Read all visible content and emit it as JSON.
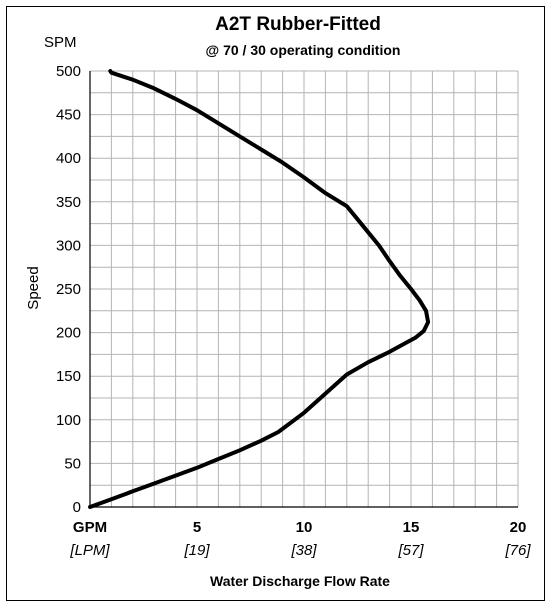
{
  "chart_data": {
    "type": "line",
    "title": "A2T Rubber-Fitted",
    "subtitle": "@ 70 / 30 operating condition",
    "xlabel": "Water Discharge Flow Rate",
    "ylabel": "Speed",
    "y_unit": "SPM",
    "x_unit": "GPM",
    "x_secondary_unit": "[LPM]",
    "xlim": [
      0,
      20
    ],
    "ylim": [
      0,
      500
    ],
    "x_ticks": [
      {
        "value": 5,
        "label": "5",
        "secondary": "[19]"
      },
      {
        "value": 10,
        "label": "10",
        "secondary": "[38]"
      },
      {
        "value": 15,
        "label": "15",
        "secondary": "[57]"
      },
      {
        "value": 20,
        "label": "20",
        "secondary": "[76]"
      }
    ],
    "y_ticks": [
      0,
      50,
      100,
      150,
      200,
      250,
      300,
      350,
      400,
      450,
      500
    ],
    "grid": true,
    "x_minor_step": 1,
    "y_minor_step": 25,
    "series": [
      {
        "color": "#000000",
        "x": [
          0,
          1,
          2,
          3,
          4,
          5,
          6,
          7,
          8,
          8.8,
          10,
          11,
          12,
          13,
          14,
          14.6,
          15.2,
          15.6,
          15.8,
          15.7,
          15.4,
          15,
          14.5,
          14,
          13.5,
          13,
          12.5,
          12,
          11,
          10,
          9,
          8,
          7,
          6,
          5,
          4,
          3,
          2,
          1,
          0.95
        ],
        "y": [
          0,
          9,
          18,
          27,
          36,
          45,
          55,
          65,
          76,
          86,
          108,
          130,
          152,
          166,
          178,
          186,
          194,
          202,
          212,
          225,
          237,
          250,
          265,
          282,
          300,
          315,
          330,
          345,
          360,
          378,
          395,
          410,
          425,
          440,
          455,
          468,
          480,
          490,
          498,
          500
        ]
      }
    ]
  }
}
